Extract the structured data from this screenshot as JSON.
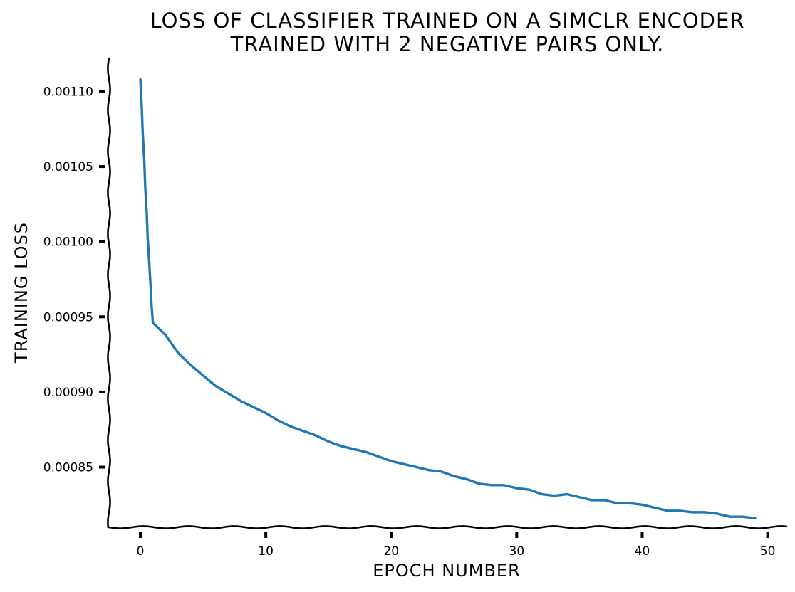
{
  "chart_data": {
    "type": "line",
    "title_lines": [
      "LOSS OF CLASSIFIER TRAINED ON A SIMCLR ENCODER",
      "TRAINED WITH 2 NEGATIVE PAIRS ONLY."
    ],
    "xlabel": "EPOCH NUMBER",
    "ylabel": "TRAINING LOSS",
    "xlim": [
      -2.5,
      51.5
    ],
    "ylim": [
      0.00081,
      0.001122
    ],
    "xticks": [
      0,
      10,
      20,
      30,
      40,
      50
    ],
    "xtick_labels": [
      "0",
      "10",
      "20",
      "30",
      "40",
      "50"
    ],
    "yticks": [
      0.00085,
      0.0009,
      0.00095,
      0.001,
      0.00105,
      0.0011
    ],
    "ytick_labels": [
      "0.00085",
      "0.00090",
      "0.00095",
      "0.00100",
      "0.00105",
      "0.00110"
    ],
    "grid": false,
    "series": [
      {
        "color": "#1f77b4",
        "x": [
          0,
          1,
          2,
          3,
          4,
          5,
          6,
          7,
          8,
          9,
          10,
          11,
          12,
          13,
          14,
          15,
          16,
          17,
          18,
          19,
          20,
          21,
          22,
          23,
          24,
          25,
          26,
          27,
          28,
          29,
          30,
          31,
          32,
          33,
          34,
          35,
          36,
          37,
          38,
          39,
          40,
          41,
          42,
          43,
          44,
          45,
          46,
          47,
          48,
          49
        ],
        "values": [
          0.001108,
          0.000946,
          0.000938,
          0.000926,
          0.000918,
          0.000911,
          0.000904,
          0.000899,
          0.000894,
          0.00089,
          0.000886,
          0.000881,
          0.000877,
          0.000874,
          0.000871,
          0.000867,
          0.000864,
          0.000862,
          0.00086,
          0.000857,
          0.000854,
          0.000852,
          0.00085,
          0.000848,
          0.000847,
          0.000844,
          0.000842,
          0.000839,
          0.000838,
          0.000838,
          0.000836,
          0.000835,
          0.000832,
          0.000831,
          0.000832,
          0.00083,
          0.000828,
          0.000828,
          0.000826,
          0.000826,
          0.000825,
          0.000823,
          0.000821,
          0.000821,
          0.00082,
          0.00082,
          0.000819,
          0.000817,
          0.000817,
          0.000816
        ]
      }
    ]
  }
}
